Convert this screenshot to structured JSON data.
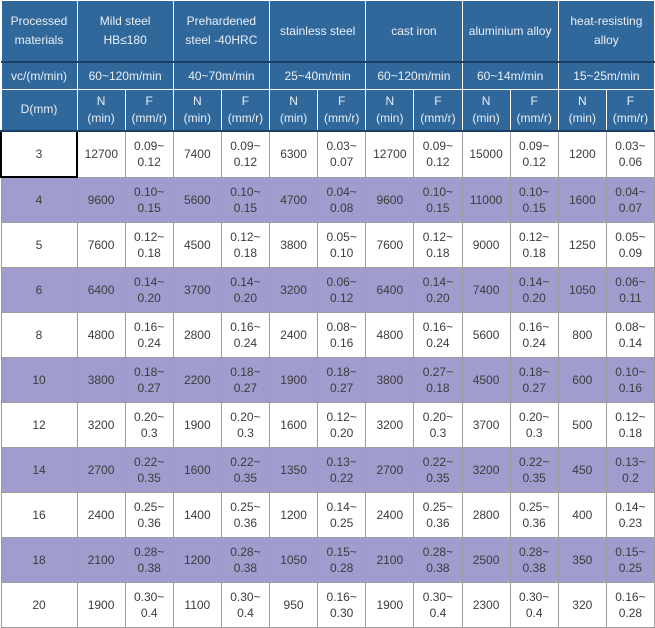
{
  "colors": {
    "header_bg": "#31689b",
    "header_text": "#e9eff7",
    "header_divider": "#1c3f66",
    "row_bg": "#ffffff",
    "row_alt_bg": "#a09ccd",
    "body_text": "#3c3c3c",
    "grid_line": "#9e9e9e",
    "selection_border": "#000000"
  },
  "selection": {
    "row_index": 0,
    "column": "D"
  },
  "chart_data": {
    "type": "table",
    "corner_header": "Processed materials",
    "speed_row_header": "vc/(m/min)",
    "diameter_header": "D(mm)",
    "sub_columns": {
      "n": {
        "label": "N",
        "unit": "(min)"
      },
      "f": {
        "label": "F",
        "unit": "(mm/r)"
      }
    },
    "materials": [
      {
        "name": "Mild steel HB≤180",
        "vc": "60~120m/min"
      },
      {
        "name": "Prehardened steel -40HRC",
        "vc": "40~70m/min"
      },
      {
        "name": "stainless steel",
        "vc": "25~40m/min"
      },
      {
        "name": "cast iron",
        "vc": "60~120m/min"
      },
      {
        "name": "aluminium alloy",
        "vc": "60~14m/min"
      },
      {
        "name": "heat-resisting alloy",
        "vc": "15~25m/min"
      }
    ],
    "rows": [
      {
        "d": "3",
        "values": [
          [
            "12700",
            "0.09~0.12"
          ],
          [
            "7400",
            "0.09~0.12"
          ],
          [
            "6300",
            "0.03~0.07"
          ],
          [
            "12700",
            "0.09~0.12"
          ],
          [
            "15000",
            "0.09~0.12"
          ],
          [
            "1200",
            "0.03~0.06"
          ]
        ]
      },
      {
        "d": "4",
        "values": [
          [
            "9600",
            "0.10~0.15"
          ],
          [
            "5600",
            "0.10~0.15"
          ],
          [
            "4700",
            "0.04~0.08"
          ],
          [
            "9600",
            "0.10~0.15"
          ],
          [
            "11000",
            "0.10~0.15"
          ],
          [
            "1600",
            "0.04~0.07"
          ]
        ]
      },
      {
        "d": "5",
        "values": [
          [
            "7600",
            "0.12~0.18"
          ],
          [
            "4500",
            "0.12~0.18"
          ],
          [
            "3800",
            "0.05~0.10"
          ],
          [
            "7600",
            "0.12~0.18"
          ],
          [
            "9000",
            "0.12~0.18"
          ],
          [
            "1250",
            "0.05~0.09"
          ]
        ]
      },
      {
        "d": "6",
        "values": [
          [
            "6400",
            "0.14~0.20"
          ],
          [
            "3700",
            "0.14~0.20"
          ],
          [
            "3200",
            "0.06~0.12"
          ],
          [
            "6400",
            "0.14~0.20"
          ],
          [
            "7400",
            "0.14~0.20"
          ],
          [
            "1050",
            "0.06~0.11"
          ]
        ]
      },
      {
        "d": "8",
        "values": [
          [
            "4800",
            "0.16~0.24"
          ],
          [
            "2800",
            "0.16~0.24"
          ],
          [
            "2400",
            "0.08~0.16"
          ],
          [
            "4800",
            "0.16~0.24"
          ],
          [
            "5600",
            "0.16~0.24"
          ],
          [
            "800",
            "0.08~0.14"
          ]
        ]
      },
      {
        "d": "10",
        "values": [
          [
            "3800",
            "0.18~0.27"
          ],
          [
            "2200",
            "0.18~0.27"
          ],
          [
            "1900",
            "0.18~0.27"
          ],
          [
            "3800",
            "0.27~0.18"
          ],
          [
            "4500",
            "0.18~0.27"
          ],
          [
            "600",
            "0.10~0.16"
          ]
        ]
      },
      {
        "d": "12",
        "values": [
          [
            "3200",
            "0.20~0.3"
          ],
          [
            "1900",
            "0.20~0.3"
          ],
          [
            "1600",
            "0.12~0.20"
          ],
          [
            "3200",
            "0.20~0.3"
          ],
          [
            "3700",
            "0.20~0.3"
          ],
          [
            "500",
            "0.12~0.18"
          ]
        ]
      },
      {
        "d": "14",
        "values": [
          [
            "2700",
            "0.22~0.35"
          ],
          [
            "1600",
            "0.22~0.35"
          ],
          [
            "1350",
            "0.13~0.22"
          ],
          [
            "2700",
            "0.22~0.35"
          ],
          [
            "3200",
            "0.22~0.35"
          ],
          [
            "450",
            "0.13~0.2"
          ]
        ]
      },
      {
        "d": "16",
        "values": [
          [
            "2400",
            "0.25~0.36"
          ],
          [
            "1400",
            "0.25~0.36"
          ],
          [
            "1200",
            "0.14~0.25"
          ],
          [
            "2400",
            "0.25~0.36"
          ],
          [
            "2800",
            "0.25~0.36"
          ],
          [
            "400",
            "0.14~0.23"
          ]
        ]
      },
      {
        "d": "18",
        "values": [
          [
            "2100",
            "0.28~0.38"
          ],
          [
            "1200",
            "0.28~0.38"
          ],
          [
            "1050",
            "0.15~0.28"
          ],
          [
            "2100",
            "0.28~0.38"
          ],
          [
            "2500",
            "0.28~0.38"
          ],
          [
            "350",
            "0.15~0.25"
          ]
        ]
      },
      {
        "d": "20",
        "values": [
          [
            "1900",
            "0.30~0.4"
          ],
          [
            "1100",
            "0.30~0.4"
          ],
          [
            "950",
            "0.16~0.30"
          ],
          [
            "1900",
            "0.30~0.4"
          ],
          [
            "2300",
            "0.30~0.4"
          ],
          [
            "320",
            "0.16~0.28"
          ]
        ]
      }
    ]
  }
}
